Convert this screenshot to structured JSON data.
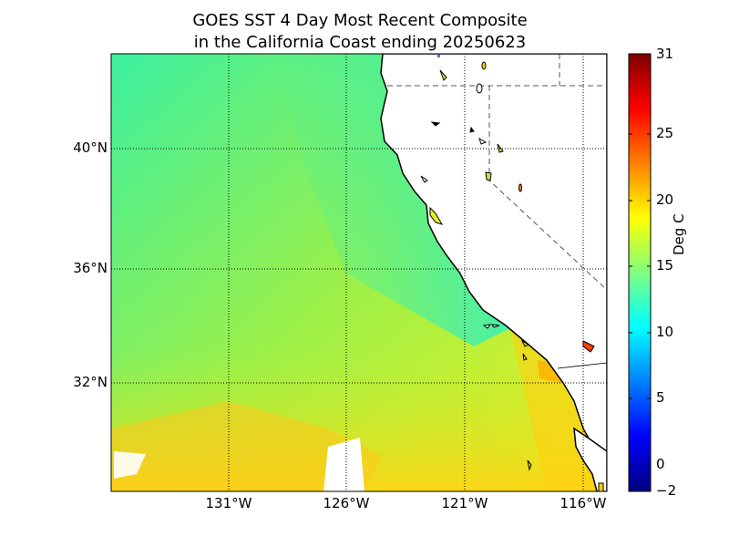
{
  "title": {
    "line1": "GOES SST 4 Day Most Recent Composite",
    "line2": "in the California Coast ending 20250623"
  },
  "map": {
    "region": "California Coast",
    "lat_labels": [
      "40°N",
      "36°N",
      "32°N"
    ],
    "lon_labels": [
      "131°W",
      "126°W",
      "121°W",
      "116°W"
    ],
    "grid": "dotted",
    "land_color": "#ffffff",
    "coastline_color": "#000000",
    "state_border_style": "dashed"
  },
  "colorbar": {
    "label": "Deg C",
    "ticks": [
      "31",
      "25",
      "20",
      "15",
      "10",
      "5",
      "0",
      "−2"
    ],
    "range": [
      -2,
      31
    ],
    "colormap": "jet"
  },
  "chart_data": {
    "type": "heatmap",
    "title": "GOES SST 4 Day Most Recent Composite in the California Coast ending 20250623",
    "colorbar_label": "Deg C",
    "value_range": [
      -2,
      31
    ],
    "x_ticks": [
      "131°W",
      "126°W",
      "121°W",
      "116°W"
    ],
    "y_ticks": [
      "40°N",
      "36°N",
      "32°N"
    ]
  }
}
